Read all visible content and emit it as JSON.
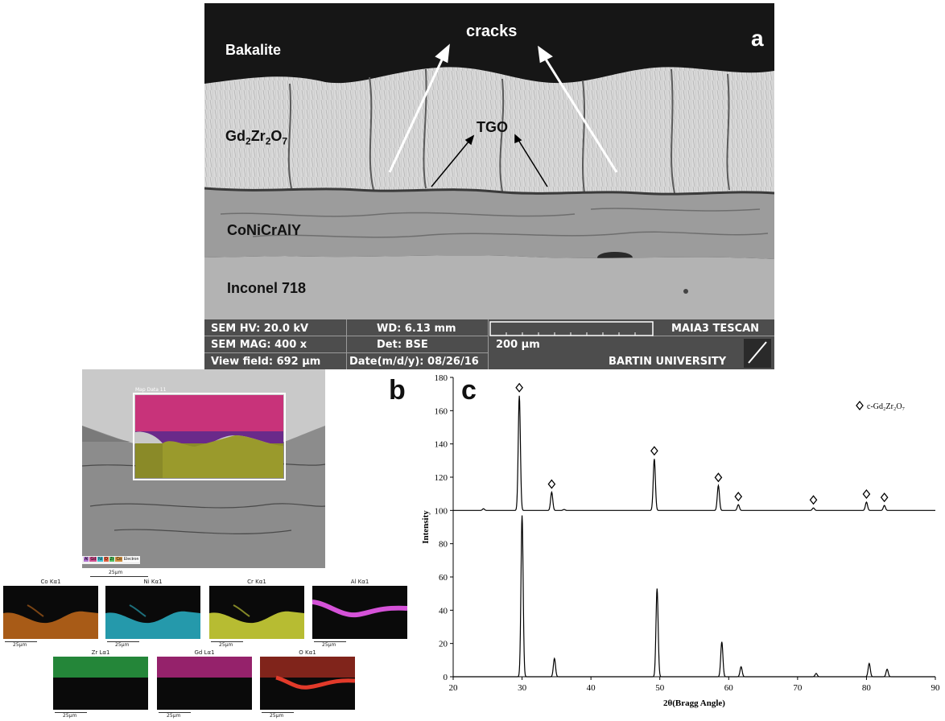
{
  "panel_a": {
    "letter": "a",
    "labels": {
      "bakalite": "Bakalite",
      "cracks": "cracks",
      "gzo_base": "Gd",
      "gzo_sub1": "2",
      "gzo_mid": "Zr",
      "gzo_sub2": "2",
      "gzo_end": "O",
      "gzo_sub3": "7",
      "tgo": "TGO",
      "bondcoat": "CoNiCrAlY",
      "substrate": "Inconel 718"
    },
    "info": {
      "hv": "SEM HV: 20.0 kV",
      "wd": "WD: 6.13 mm",
      "brand": "MAIA3 TESCAN",
      "mag": "SEM MAG: 400 x",
      "det": "Det: BSE",
      "scale": "200 μm",
      "field": "View field: 692 μm",
      "date": "Date(m/d/y): 08/26/16",
      "univ": "BARTIN UNIVERSITY"
    }
  },
  "panel_b": {
    "letter": "b",
    "map_label": "Map Data 11",
    "legend": [
      "Al",
      "Gd",
      "Ni",
      "O",
      "Zr",
      "Co",
      "Electron"
    ],
    "main_scale": "25μm",
    "maps": [
      {
        "title": "Co Kα1",
        "scale": "25μm",
        "color": "#c46a1a"
      },
      {
        "title": "Ni Kα1",
        "scale": "25μm",
        "color": "#2ab3c8"
      },
      {
        "title": "Cr Kα1",
        "scale": "25μm",
        "color": "#d6dc3a"
      },
      {
        "title": "Al Kα1",
        "scale": "25μm",
        "color": "#d552d8"
      },
      {
        "title": "Zr Lα1",
        "scale": "25μm",
        "color": "#2eb04a"
      },
      {
        "title": "Gd Lα1",
        "scale": "25μm",
        "color": "#c42b8c"
      },
      {
        "title": "O Kα1",
        "scale": "25μm",
        "color": "#e23a2a"
      }
    ]
  },
  "panel_c": {
    "letter": "c"
  },
  "chart_data": {
    "type": "line",
    "xlabel": "2θ(Bragg Angle)",
    "ylabel": "Intensity",
    "xlim": [
      20,
      90
    ],
    "ylim": [
      0,
      180
    ],
    "x_ticks": [
      "20",
      "30",
      "40",
      "50",
      "60",
      "70",
      "80",
      "90"
    ],
    "y_ticks": [
      "0",
      "20",
      "40",
      "60",
      "80",
      "100",
      "120",
      "140",
      "160",
      "180"
    ],
    "legend": {
      "label": "c-Gd₂Zr₂O₇",
      "position": "top-right",
      "marker": "diamond"
    },
    "series": [
      {
        "offset": 100,
        "baseline": 100,
        "peaks": [
          {
            "x": 24.4,
            "y": 101
          },
          {
            "x": 29.6,
            "y": 169
          },
          {
            "x": 34.3,
            "y": 111
          },
          {
            "x": 36.1,
            "y": 100.6
          },
          {
            "x": 49.2,
            "y": 131
          },
          {
            "x": 58.5,
            "y": 115
          },
          {
            "x": 61.4,
            "y": 103.5
          },
          {
            "x": 72.3,
            "y": 101.5
          },
          {
            "x": 80.0,
            "y": 105
          },
          {
            "x": 82.6,
            "y": 103
          }
        ],
        "markers_x": [
          29.6,
          34.3,
          49.2,
          58.5,
          61.4,
          72.3,
          80.0,
          82.6
        ]
      },
      {
        "baseline": 0,
        "peaks": [
          {
            "x": 30.0,
            "y": 97
          },
          {
            "x": 34.7,
            "y": 11
          },
          {
            "x": 49.6,
            "y": 53
          },
          {
            "x": 59.0,
            "y": 21
          },
          {
            "x": 61.8,
            "y": 6
          },
          {
            "x": 72.7,
            "y": 2
          },
          {
            "x": 80.4,
            "y": 8
          },
          {
            "x": 83.0,
            "y": 4.5
          }
        ]
      }
    ]
  }
}
